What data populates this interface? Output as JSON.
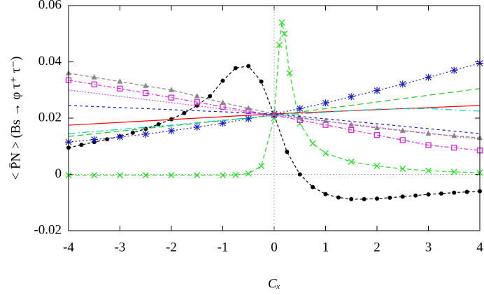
{
  "chart_data": {
    "type": "line",
    "xlabel": "Cₓ",
    "ylabel": "< P̄N > (Bs → φ τ⁺ τ⁻)",
    "xlim": [
      -4,
      4
    ],
    "xticks": [
      -4,
      -3,
      -2,
      -1,
      0,
      1,
      2,
      3,
      4
    ],
    "ylim": [
      -0.02,
      0.06
    ],
    "yticks": [
      -0.02,
      0,
      0.02,
      0.04,
      0.06
    ],
    "zero_lines": true,
    "series": [
      {
        "color": "#000000",
        "marker": "dot",
        "dash": "4,3",
        "x": [
          -4,
          -3.75,
          -3.5,
          -3.25,
          -3,
          -2.75,
          -2.5,
          -2.25,
          -2,
          -1.75,
          -1.5,
          -1.25,
          -1,
          -0.75,
          -0.5,
          -0.25,
          0,
          0.25,
          0.5,
          0.75,
          1,
          1.25,
          1.5,
          1.75,
          2,
          2.25,
          2.5,
          2.75,
          3,
          3.25,
          3.5,
          3.75,
          4
        ],
        "values": [
          0.0095,
          0.0105,
          0.0115,
          0.0125,
          0.0135,
          0.0148,
          0.0162,
          0.0178,
          0.0196,
          0.0218,
          0.0245,
          0.0278,
          0.0333,
          0.0378,
          0.0385,
          0.033,
          0.021,
          0.008,
          0,
          -0.0045,
          -0.007,
          -0.0082,
          -0.0088,
          -0.0088,
          -0.0086,
          -0.0083,
          -0.0079,
          -0.0075,
          -0.0071,
          -0.0068,
          -0.0065,
          -0.0062,
          -0.006
        ]
      },
      {
        "color": "#22e022",
        "marker": "cross",
        "dash": "6,4",
        "x": [
          -4,
          -3.5,
          -3,
          -2.5,
          -2,
          -1.5,
          -1,
          -0.75,
          -0.5,
          -0.25,
          0,
          0.1,
          0.15,
          0.2,
          0.3,
          0.5,
          0.75,
          1,
          1.5,
          2,
          2.5,
          3,
          3.5,
          4
        ],
        "values": [
          -0.0003,
          -0.0003,
          -0.0003,
          -0.0003,
          -0.0003,
          -0.0003,
          -0.0003,
          -0.0002,
          0.0003,
          0.003,
          0.02,
          0.046,
          0.054,
          0.05,
          0.036,
          0.018,
          0.011,
          0.0075,
          0.0045,
          0.003,
          0.002,
          0.0013,
          0.0009,
          0.0006
        ]
      },
      {
        "color": "#1a1ad0",
        "marker": "star",
        "dash": "2,3",
        "x": [
          -4,
          -3.5,
          -3,
          -2.5,
          -2,
          -1.5,
          -1,
          -0.5,
          0,
          0.5,
          1,
          1.5,
          2,
          2.5,
          3,
          3.5,
          4
        ],
        "values": [
          0.0115,
          0.0124,
          0.0133,
          0.0143,
          0.0155,
          0.0168,
          0.0182,
          0.0198,
          0.0215,
          0.0234,
          0.0254,
          0.0276,
          0.0298,
          0.0321,
          0.0345,
          0.037,
          0.0395
        ]
      },
      {
        "color": "#e020e0",
        "marker": "square",
        "dash": "6,3,2,3",
        "x": [
          -4,
          -3.5,
          -3,
          -2.5,
          -2,
          -1.5,
          -1,
          -0.5,
          0,
          0.5,
          1,
          1.5,
          2,
          2.5,
          3,
          3.5,
          4
        ],
        "values": [
          0.0335,
          0.032,
          0.0305,
          0.0289,
          0.0273,
          0.0257,
          0.024,
          0.0225,
          0.021,
          0.0193,
          0.0176,
          0.0158,
          0.014,
          0.0122,
          0.0104,
          0.0095,
          0.0085
        ]
      },
      {
        "color": "#888888",
        "marker": "triangle",
        "dash": "5,3",
        "x": [
          -4,
          -3.5,
          -3,
          -2.5,
          -2,
          -1.5,
          -1,
          -0.5,
          0,
          0.5,
          1,
          1.5,
          2,
          2.5,
          3,
          3.5,
          4
        ],
        "values": [
          0.036,
          0.0345,
          0.033,
          0.0315,
          0.03,
          0.0278,
          0.0255,
          0.0235,
          0.0215,
          0.0202,
          0.019,
          0.0177,
          0.0165,
          0.0155,
          0.0145,
          0.0137,
          0.013
        ]
      },
      {
        "color": "#ff0000",
        "dash": "none",
        "x": [
          -4,
          0,
          4
        ],
        "values": [
          0.0175,
          0.0215,
          0.0245
        ]
      },
      {
        "color": "#22c022",
        "dash": "8,5",
        "x": [
          -4,
          0,
          4
        ],
        "values": [
          0.0135,
          0.021,
          0.0305
        ]
      },
      {
        "color": "#00d0d0",
        "dash": "10,4,2,4",
        "x": [
          -4,
          -2,
          0,
          2,
          3,
          4
        ],
        "values": [
          0.0145,
          0.0175,
          0.021,
          0.0232,
          0.0234,
          0.0225
        ]
      },
      {
        "color": "#1a1ad0",
        "dash": "4,4",
        "x": [
          -4,
          0,
          4
        ],
        "values": [
          0.0245,
          0.0215,
          0.0145
        ]
      },
      {
        "color": "#e020e0",
        "dash": "1.5,2.5",
        "x": [
          -4,
          0,
          4
        ],
        "values": [
          0.03,
          0.021,
          0.0125
        ]
      }
    ]
  }
}
